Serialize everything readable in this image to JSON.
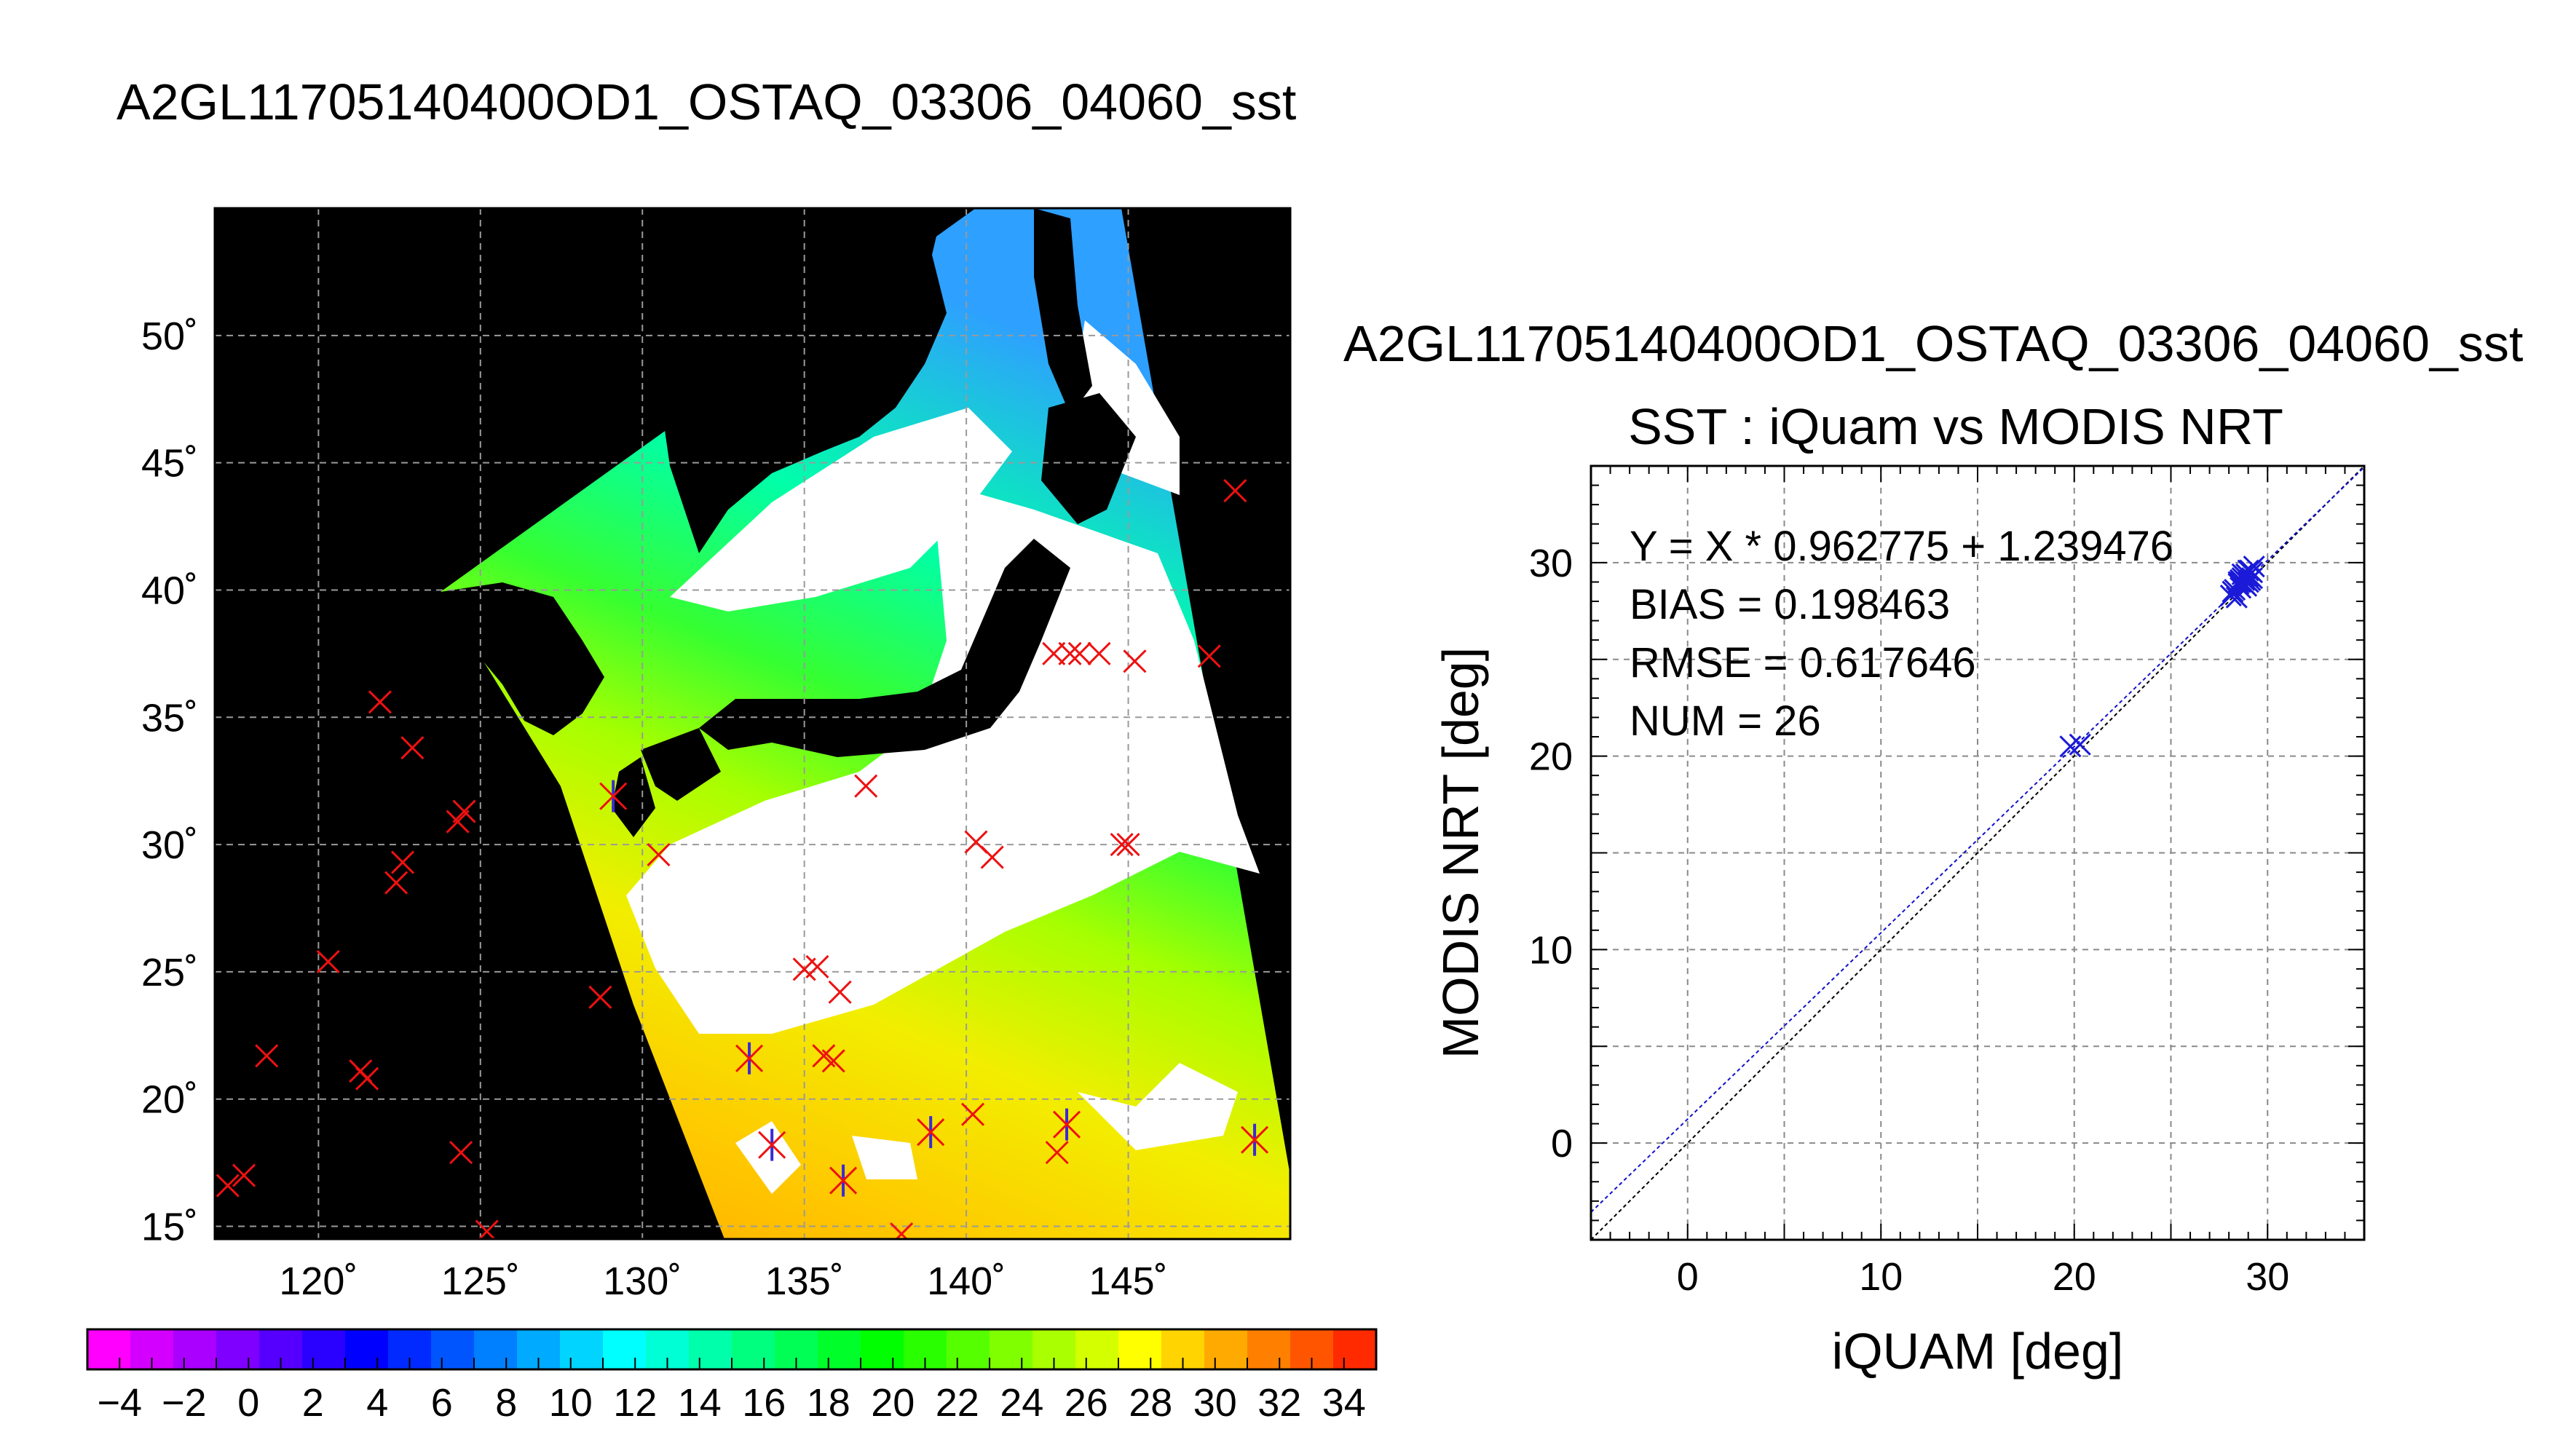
{
  "page_title": "A2GL11705140400OD1_OSTAQ_03306_04060_sst",
  "chart_data": [
    {
      "type": "map",
      "title": "A2GL11705140400OD1_OSTAQ_03306_04060_sst",
      "xlim": [
        116.8,
        150.0
      ],
      "ylim": [
        14.5,
        55.0
      ],
      "x_ticks": [
        120,
        125,
        130,
        135,
        140,
        145
      ],
      "x_tick_labels": [
        "120˚",
        "125˚",
        "130˚",
        "135˚",
        "140˚",
        "145˚"
      ],
      "y_ticks": [
        15,
        20,
        25,
        30,
        35,
        40,
        45,
        50
      ],
      "y_tick_labels": [
        "15˚",
        "20˚",
        "25˚",
        "30˚",
        "35˚",
        "40˚",
        "45˚",
        "50˚"
      ],
      "grid": true,
      "colorbar": {
        "min": -5,
        "max": 35,
        "tick_values": [
          -4,
          -2,
          0,
          2,
          4,
          6,
          8,
          10,
          12,
          14,
          16,
          18,
          20,
          22,
          24,
          26,
          28,
          30,
          32,
          34
        ],
        "tick_labels": [
          "−4",
          "−2",
          "0",
          "2",
          "4",
          "6",
          "8",
          "10",
          "12",
          "14",
          "16",
          "18",
          "20",
          "22",
          "24",
          "26",
          "28",
          "30",
          "32",
          "34"
        ],
        "colors": [
          "#ff00ff",
          "#d400ff",
          "#aa00ff",
          "#7f00ff",
          "#5500ff",
          "#2a00ff",
          "#0000ff",
          "#002aff",
          "#0055ff",
          "#007fff",
          "#00aaff",
          "#00d4ff",
          "#00ffff",
          "#00ffd4",
          "#00ffaa",
          "#00ff7f",
          "#00ff55",
          "#00ff2a",
          "#00ff00",
          "#2aff00",
          "#55ff00",
          "#7fff00",
          "#aaff00",
          "#d4ff00",
          "#ffff00",
          "#ffd400",
          "#ffaa00",
          "#ff7f00",
          "#ff5500",
          "#ff2a00"
        ]
      },
      "match_points_unmatched": [
        [
          148.3,
          43.9
        ],
        [
          147.5,
          37.4
        ],
        [
          117.2,
          16.6
        ],
        [
          117.7,
          17.0
        ],
        [
          118.4,
          21.7
        ],
        [
          120.3,
          25.4
        ],
        [
          121.3,
          21.1
        ],
        [
          121.5,
          20.8
        ],
        [
          121.9,
          35.6
        ],
        [
          122.4,
          28.5
        ],
        [
          122.6,
          29.3
        ],
        [
          122.9,
          33.8
        ],
        [
          124.3,
          30.9
        ],
        [
          124.5,
          31.3
        ],
        [
          124.4,
          17.9
        ],
        [
          125.2,
          14.8
        ],
        [
          128.7,
          24.0
        ],
        [
          130.5,
          29.6
        ],
        [
          136.9,
          32.3
        ],
        [
          140.3,
          30.1
        ],
        [
          140.8,
          29.5
        ],
        [
          142.7,
          37.5
        ],
        [
          143.2,
          37.5
        ],
        [
          143.5,
          37.5
        ],
        [
          144.1,
          37.5
        ],
        [
          145.2,
          37.2
        ],
        [
          144.8,
          30.0
        ],
        [
          145.0,
          30.0
        ],
        [
          135.0,
          25.1
        ],
        [
          135.4,
          25.2
        ],
        [
          136.1,
          24.2
        ],
        [
          135.9,
          21.5
        ],
        [
          140.2,
          19.4
        ],
        [
          142.8,
          17.9
        ],
        [
          138.0,
          14.7
        ],
        [
          135.6,
          21.7
        ]
      ],
      "match_points_matched": [
        [
          129.1,
          31.9
        ],
        [
          133.3,
          21.6
        ],
        [
          134.0,
          18.2
        ],
        [
          136.2,
          16.8
        ],
        [
          138.9,
          18.7
        ],
        [
          143.1,
          19.0
        ],
        [
          148.9,
          18.4
        ]
      ]
    },
    {
      "type": "scatter",
      "suptitle": "A2GL11705140400OD1_OSTAQ_03306_04060_sst",
      "title": "SST : iQuam vs MODIS NRT",
      "xlabel": "iQUAM [deg]",
      "ylabel": "MODIS NRT [deg]",
      "xlim": [
        -5,
        35
      ],
      "ylim": [
        -5,
        35
      ],
      "x_ticks": [
        0,
        10,
        20,
        30
      ],
      "x_tick_labels": [
        "0",
        "10",
        "20",
        "30"
      ],
      "y_ticks": [
        0,
        10,
        20,
        30
      ],
      "y_tick_labels": [
        "0",
        "10",
        "20",
        "30"
      ],
      "grid": true,
      "annotations": [
        "Y = X * 0.962775 + 1.239476",
        "BIAS = 0.198463",
        "RMSE = 0.617646",
        "NUM = 26"
      ],
      "fit": {
        "slope": 0.962775,
        "intercept": 1.239476
      },
      "x": [
        19.8,
        20.3,
        28.1,
        28.3,
        28.5,
        28.6,
        28.7,
        28.8,
        28.9,
        29.0,
        29.1,
        29.2,
        29.3,
        28.4,
        28.6,
        28.8,
        29.0,
        29.2,
        28.2,
        28.7,
        28.9,
        29.1,
        28.5,
        28.8,
        29.0,
        28.6
      ],
      "y": [
        20.5,
        20.6,
        28.3,
        28.6,
        28.9,
        29.0,
        29.2,
        29.1,
        29.4,
        29.3,
        29.6,
        29.5,
        29.8,
        28.2,
        28.7,
        28.9,
        29.0,
        29.2,
        28.5,
        29.4,
        28.8,
        29.1,
        29.0,
        29.3,
        29.6,
        29.1
      ]
    }
  ]
}
